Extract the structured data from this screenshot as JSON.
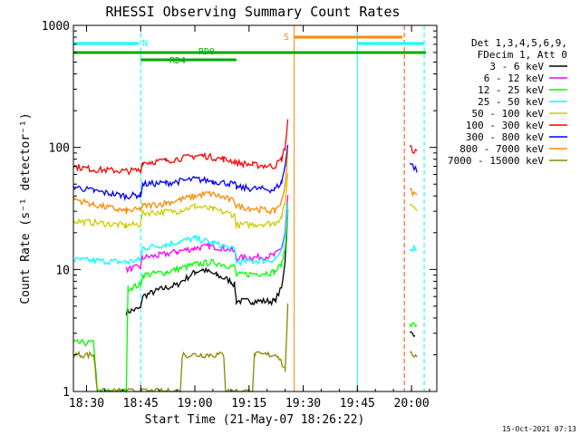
{
  "chart_data": {
    "type": "line",
    "title": "RHESSI Observing Summary Count Rates",
    "xlabel": "Start Time (21-May-07 18:26:22)",
    "ylabel": "Count Rate (s⁻¹ detector⁻¹)",
    "y_scale": "log",
    "ylim": [
      1,
      1000
    ],
    "xlim": [
      "18:26:22",
      "20:07:00"
    ],
    "x_ticks": [
      "18:30",
      "18:45",
      "19:00",
      "19:15",
      "19:30",
      "19:45",
      "20:00"
    ],
    "y_ticks": [
      "1",
      "10",
      "100",
      "1000"
    ],
    "legend_header": [
      "Det 1,3,4,5,6,9,",
      "FDecim 1, Att 0"
    ],
    "legend_position": "right",
    "timestamp": "15-Oct-2021 07:13",
    "flags": [
      {
        "label": "N",
        "color": "#00ffff",
        "segments": [
          [
            "18:26:22",
            "18:44:30"
          ],
          [
            "19:45:00",
            "20:03:30"
          ]
        ]
      },
      {
        "label": "S",
        "color": "#ff8800",
        "segments": [
          [
            "19:27:30",
            "19:57:30"
          ]
        ]
      },
      {
        "label": "RD0",
        "color": "#00aa00",
        "segments": [
          [
            "18:26:22",
            "20:04:00"
          ]
        ]
      },
      {
        "label": "RD4",
        "color": "#00aa00",
        "segments": [
          [
            "18:45:00",
            "19:11:30"
          ]
        ]
      }
    ],
    "vlines": [
      {
        "time": "18:26:22",
        "color": "#00ffff",
        "style": "solid"
      },
      {
        "time": "18:45:00",
        "color": "#00ffff",
        "style": "dashed"
      },
      {
        "time": "19:27:30",
        "color": "#ff8800",
        "style": "solid"
      },
      {
        "time": "19:45:00",
        "color": "#00ffff",
        "style": "solid"
      },
      {
        "time": "19:58:00",
        "color": "#ff4400",
        "style": "dashed"
      },
      {
        "time": "20:03:30",
        "color": "#00ffff",
        "style": "dashed"
      }
    ],
    "series": [
      {
        "name": "3 - 6 keV",
        "color": "#000000",
        "points": [
          [
            "18:41:00",
            4.5
          ],
          [
            "18:45:00",
            4.8
          ],
          [
            "18:45:30",
            6.0
          ],
          [
            "18:50:00",
            6.8
          ],
          [
            "18:55:00",
            7.5
          ],
          [
            "19:00:00",
            9.5
          ],
          [
            "19:02:00",
            10.0
          ],
          [
            "19:06:00",
            9.0
          ],
          [
            "19:10:00",
            8.0
          ],
          [
            "19:11:00",
            7.5
          ],
          [
            "19:11:30",
            5.5
          ],
          [
            "19:16:00",
            5.5
          ],
          [
            "19:22:00",
            5.5
          ],
          [
            "19:24:00",
            7.0
          ],
          [
            "19:25:00",
            12.0
          ],
          [
            "19:25:45",
            30.0
          ]
        ],
        "points2": [
          [
            "19:59:30",
            3.0
          ],
          [
            "20:01:00",
            3.0
          ]
        ]
      },
      {
        "name": "6 - 12 keV",
        "color": "#ff00ff",
        "points": [
          [
            "18:41:00",
            10.0
          ],
          [
            "18:45:00",
            10.5
          ],
          [
            "18:45:30",
            12.5
          ],
          [
            "18:50:00",
            13.0
          ],
          [
            "18:55:00",
            14.0
          ],
          [
            "19:00:00",
            15.0
          ],
          [
            "19:04:00",
            15.5
          ],
          [
            "19:08:00",
            15.0
          ],
          [
            "19:11:00",
            14.0
          ],
          [
            "19:11:30",
            12.5
          ],
          [
            "19:16:00",
            12.5
          ],
          [
            "19:22:00",
            13.0
          ],
          [
            "19:24:00",
            15.0
          ],
          [
            "19:25:00",
            20.0
          ],
          [
            "19:25:45",
            40.0
          ]
        ],
        "points2": []
      },
      {
        "name": "12 - 25 keV",
        "color": "#00ff00",
        "points": [
          [
            "18:26:22",
            2.5
          ],
          [
            "18:32:00",
            2.5
          ],
          [
            "18:33:00",
            1.0
          ],
          [
            "18:41:00",
            1.0
          ],
          [
            "18:41:30",
            7.0
          ],
          [
            "18:45:00",
            7.5
          ],
          [
            "18:45:30",
            9.0
          ],
          [
            "18:52:00",
            9.5
          ],
          [
            "19:00:00",
            11.0
          ],
          [
            "19:05:00",
            11.5
          ],
          [
            "19:11:00",
            10.5
          ],
          [
            "19:11:30",
            9.0
          ],
          [
            "19:22:00",
            9.5
          ],
          [
            "19:24:00",
            11.0
          ],
          [
            "19:25:00",
            15.0
          ],
          [
            "19:25:45",
            30.0
          ]
        ],
        "points2": [
          [
            "19:59:30",
            3.5
          ],
          [
            "20:01:30",
            3.5
          ]
        ]
      },
      {
        "name": "25 - 50 keV",
        "color": "#00ffff",
        "points": [
          [
            "18:26:22",
            12.0
          ],
          [
            "18:41:00",
            11.5
          ],
          [
            "18:45:00",
            12.0
          ],
          [
            "18:45:30",
            15.0
          ],
          [
            "18:52:00",
            16.0
          ],
          [
            "19:00:00",
            18.0
          ],
          [
            "19:05:00",
            16.5
          ],
          [
            "19:11:00",
            14.5
          ],
          [
            "19:11:30",
            11.5
          ],
          [
            "19:22:00",
            12.0
          ],
          [
            "19:24:00",
            14.0
          ],
          [
            "19:25:00",
            18.0
          ],
          [
            "19:25:45",
            35.0
          ]
        ],
        "points2": [
          [
            "19:59:30",
            15.0
          ],
          [
            "20:01:30",
            15.0
          ]
        ]
      },
      {
        "name": "50 - 100 keV",
        "color": "#cccc00",
        "points": [
          [
            "18:26:22",
            25.0
          ],
          [
            "18:41:00",
            23.0
          ],
          [
            "18:45:00",
            23.5
          ],
          [
            "18:45:30",
            29.0
          ],
          [
            "18:55:00",
            30.0
          ],
          [
            "19:00:00",
            33.0
          ],
          [
            "19:05:00",
            31.0
          ],
          [
            "19:11:00",
            28.0
          ],
          [
            "19:11:30",
            23.0
          ],
          [
            "19:22:00",
            24.0
          ],
          [
            "19:24:00",
            27.0
          ],
          [
            "19:25:00",
            35.0
          ],
          [
            "19:25:45",
            60.0
          ]
        ],
        "points2": [
          [
            "19:59:30",
            35.0
          ],
          [
            "20:01:30",
            32.0
          ]
        ]
      },
      {
        "name": "100 - 300 keV",
        "color": "#ff0000",
        "points": [
          [
            "18:26:22",
            70.0
          ],
          [
            "18:32:00",
            66.0
          ],
          [
            "18:41:00",
            64.0
          ],
          [
            "18:45:00",
            65.0
          ],
          [
            "18:45:30",
            75.0
          ],
          [
            "18:52:00",
            78.0
          ],
          [
            "19:00:00",
            85.0
          ],
          [
            "19:02:00",
            86.0
          ],
          [
            "19:08:00",
            80.0
          ],
          [
            "19:11:00",
            77.0
          ],
          [
            "19:11:30",
            75.0
          ],
          [
            "19:16:00",
            72.0
          ],
          [
            "19:22:00",
            70.0
          ],
          [
            "19:24:00",
            80.0
          ],
          [
            "19:25:00",
            100.0
          ],
          [
            "19:25:45",
            165.0
          ]
        ],
        "points2": [
          [
            "19:59:30",
            100.0
          ],
          [
            "20:01:30",
            90.0
          ]
        ]
      },
      {
        "name": "300 - 800 keV",
        "color": "#0000ff",
        "points": [
          [
            "18:26:22",
            48.0
          ],
          [
            "18:32:00",
            44.0
          ],
          [
            "18:41:00",
            40.0
          ],
          [
            "18:45:00",
            41.0
          ],
          [
            "18:45:30",
            50.0
          ],
          [
            "18:52:00",
            51.0
          ],
          [
            "19:00:00",
            55.0
          ],
          [
            "19:05:00",
            53.0
          ],
          [
            "19:11:00",
            50.0
          ],
          [
            "19:11:30",
            47.0
          ],
          [
            "19:22:00",
            45.0
          ],
          [
            "19:24:00",
            52.0
          ],
          [
            "19:25:00",
            70.0
          ],
          [
            "19:25:45",
            110.0
          ]
        ],
        "points2": [
          [
            "19:59:30",
            75.0
          ],
          [
            "20:01:30",
            65.0
          ]
        ]
      },
      {
        "name": "800 - 7000 keV",
        "color": "#ff8800",
        "points": [
          [
            "18:26:22",
            38.0
          ],
          [
            "18:32:00",
            34.0
          ],
          [
            "18:41:00",
            30.0
          ],
          [
            "18:45:00",
            31.0
          ],
          [
            "18:45:30",
            33.0
          ],
          [
            "18:52:00",
            35.0
          ],
          [
            "19:00:00",
            40.0
          ],
          [
            "19:04:00",
            42.0
          ],
          [
            "19:08:00",
            39.0
          ],
          [
            "19:11:00",
            36.0
          ],
          [
            "19:11:30",
            33.0
          ],
          [
            "19:22:00",
            30.0
          ],
          [
            "19:24:00",
            36.0
          ],
          [
            "19:25:00",
            50.0
          ],
          [
            "19:25:45",
            90.0
          ]
        ],
        "points2": [
          [
            "19:59:30",
            45.0
          ],
          [
            "20:01:30",
            40.0
          ]
        ]
      },
      {
        "name": "7000 - 15000 keV",
        "color": "#888800",
        "points": [
          [
            "18:26:22",
            2.0
          ],
          [
            "18:32:00",
            2.0
          ],
          [
            "18:33:00",
            1.0
          ],
          [
            "18:56:00",
            1.0
          ],
          [
            "18:56:30",
            2.0
          ],
          [
            "19:08:00",
            2.0
          ],
          [
            "19:08:30",
            1.0
          ],
          [
            "19:16:00",
            1.0
          ],
          [
            "19:16:30",
            2.0
          ],
          [
            "19:23:00",
            2.0
          ],
          [
            "19:25:00",
            1.5
          ],
          [
            "19:25:45",
            5.0
          ]
        ],
        "points2": [
          [
            "19:59:30",
            2.0
          ],
          [
            "20:01:30",
            2.0
          ]
        ]
      }
    ]
  }
}
